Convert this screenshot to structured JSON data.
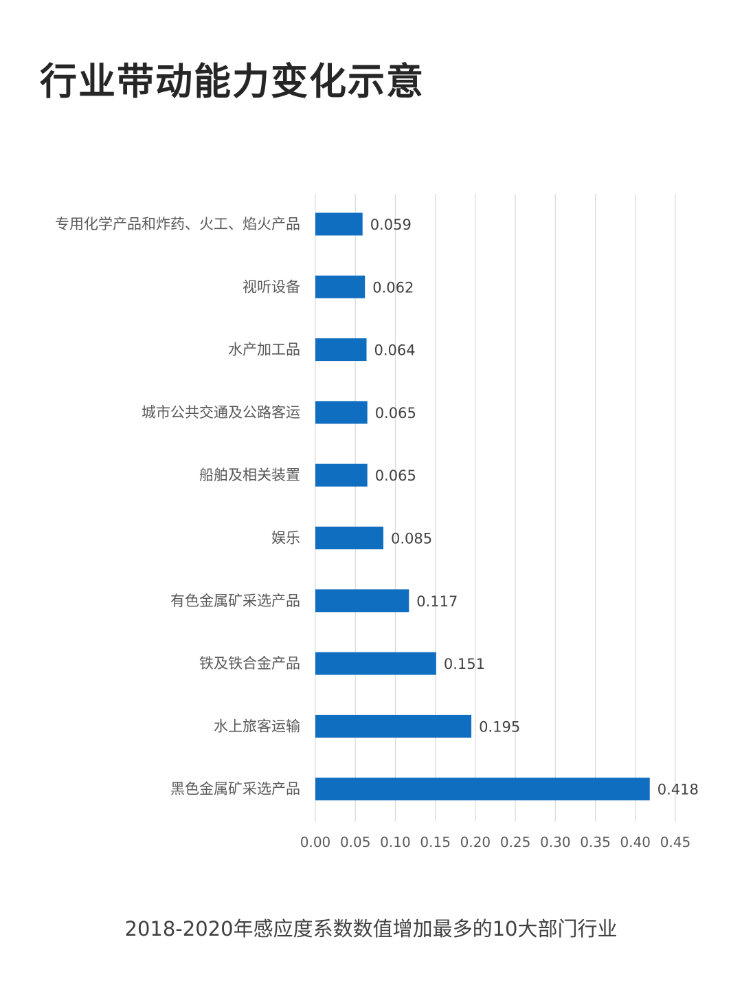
{
  "title": "行业带动能力变化示意",
  "caption": "2018-2020年感应度系数数值增加最多的10大部门行业",
  "colors": {
    "bar": "#0F6EC0",
    "grid": "#D9D9D9",
    "title": "#262626",
    "text": "#595959"
  },
  "chart_data": {
    "type": "bar",
    "orientation": "horizontal",
    "categories": [
      "专用化学产品和炸药、火工、焰火产品",
      "视听设备",
      "水产加工品",
      "城市公共交通及公路客运",
      "船舶及相关装置",
      "娱乐",
      "有色金属矿采选产品",
      "铁及铁合金产品",
      "水上旅客运输",
      "黑色金属矿采选产品"
    ],
    "values": [
      0.059,
      0.062,
      0.064,
      0.065,
      0.065,
      0.085,
      0.117,
      0.151,
      0.195,
      0.418
    ],
    "value_labels": [
      "0.059",
      "0.062",
      "0.064",
      "0.065",
      "0.065",
      "0.085",
      "0.117",
      "0.151",
      "0.195",
      "0.418"
    ],
    "xlim": [
      0,
      0.45
    ],
    "xticks": [
      "0.00",
      "0.05",
      "0.10",
      "0.15",
      "0.20",
      "0.25",
      "0.30",
      "0.35",
      "0.40",
      "0.45"
    ],
    "grid": "vertical",
    "legend": "none"
  }
}
